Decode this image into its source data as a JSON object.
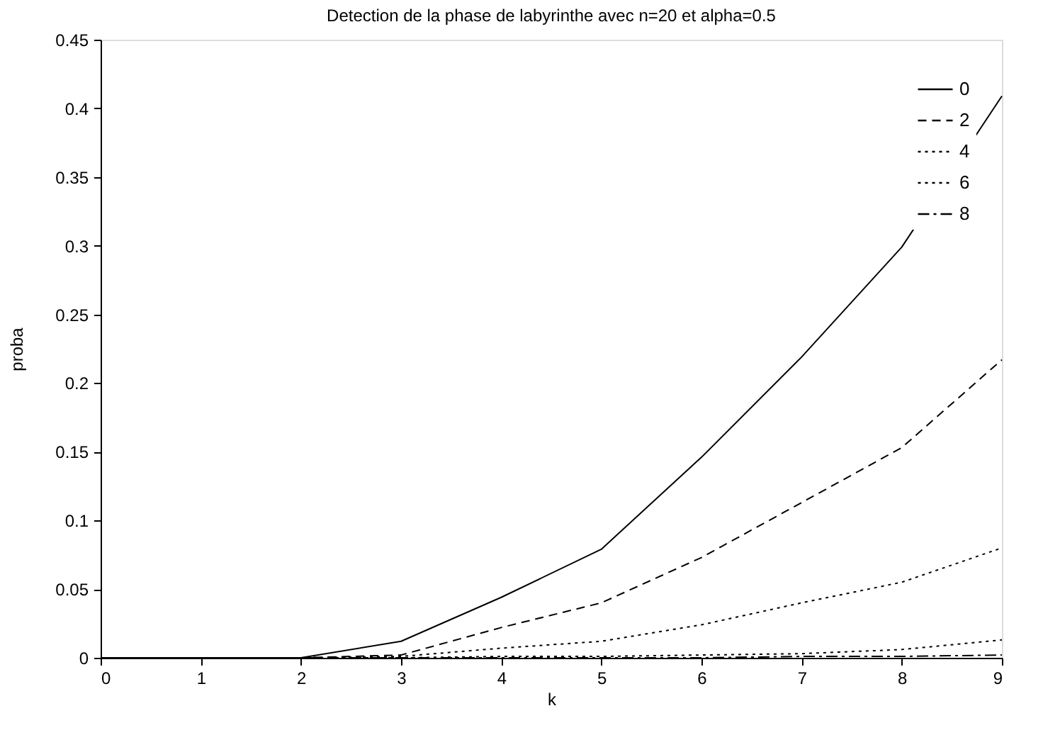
{
  "chart_data": {
    "type": "line",
    "title": "Detection de la phase de labyrinthe avec n=20 et alpha=0.5",
    "xlabel": "k",
    "ylabel": "proba",
    "x": [
      0,
      1,
      2,
      3,
      4,
      5,
      6,
      7,
      8,
      9
    ],
    "series": [
      {
        "name": "0",
        "color": "#000000",
        "line_style": "solid",
        "values": [
          0,
          0,
          0,
          0.012,
          0.044,
          0.079,
          0.146,
          0.219,
          0.299,
          0.409
        ]
      },
      {
        "name": "2",
        "color": "#000000",
        "line_style": "dashed",
        "values": [
          0,
          0,
          0,
          0.002,
          0.022,
          0.04,
          0.073,
          0.113,
          0.153,
          0.217
        ]
      },
      {
        "name": "4",
        "color": "#000000",
        "line_style": "dotted",
        "values": [
          0,
          0,
          0,
          0.001,
          0.007,
          0.012,
          0.024,
          0.04,
          0.055,
          0.08
        ]
      },
      {
        "name": "6",
        "color": "#000000",
        "line_style": "dotted",
        "values": [
          0,
          0,
          0,
          0,
          0.001,
          0.001,
          0.002,
          0.003,
          0.006,
          0.013
        ]
      },
      {
        "name": "8",
        "color": "#000000",
        "line_style": "dashdot",
        "values": [
          0,
          0,
          0,
          0,
          0,
          0,
          0,
          0.001,
          0.001,
          0.002
        ]
      }
    ],
    "xlim": [
      0,
      9
    ],
    "xticks": [
      0,
      1,
      2,
      3,
      4,
      5,
      6,
      7,
      8,
      9
    ],
    "ylim": [
      0,
      0.45
    ],
    "yticks": [
      0,
      0.05,
      0.1,
      0.15,
      0.2,
      0.25,
      0.3,
      0.35,
      0.4,
      0.45
    ],
    "grid": false,
    "legend": "top right",
    "marker": "none"
  }
}
